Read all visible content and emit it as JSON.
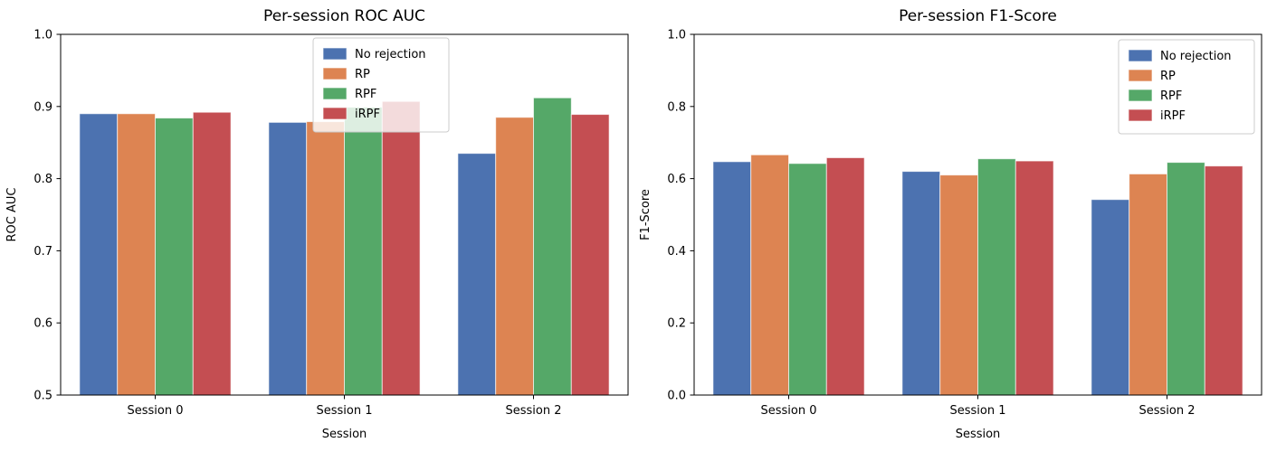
{
  "figure": {
    "background": "#ffffff",
    "palette": {
      "blue": "#4C72B0",
      "orange": "#DD8452",
      "green": "#55A868",
      "red": "#C44E52"
    }
  },
  "chart_data": [
    {
      "type": "bar",
      "title": "Per-session ROC AUC",
      "xlabel": "Session",
      "ylabel": "ROC AUC",
      "categories": [
        "Session 0",
        "Session 1",
        "Session 2"
      ],
      "series": [
        {
          "name": "No rejection",
          "color": "#4C72B0",
          "values": [
            0.89,
            0.878,
            0.835
          ]
        },
        {
          "name": "RP",
          "color": "#DD8452",
          "values": [
            0.89,
            0.879,
            0.885
          ]
        },
        {
          "name": "RPF",
          "color": "#55A868",
          "values": [
            0.884,
            0.899,
            0.912
          ]
        },
        {
          "name": "iRPF",
          "color": "#C44E52",
          "values": [
            0.892,
            0.907,
            0.889
          ]
        }
      ],
      "ylim": [
        0.5,
        1.0
      ],
      "yticks": [
        0.5,
        0.6,
        0.7,
        0.8,
        0.9,
        1.0
      ],
      "grid": false,
      "legend": {
        "position": "upper-center",
        "entries": [
          "No rejection",
          "RP",
          "RPF",
          "iRPF"
        ]
      }
    },
    {
      "type": "bar",
      "title": "Per-session F1-Score",
      "xlabel": "Session",
      "ylabel": "F1-Score",
      "categories": [
        "Session 0",
        "Session 1",
        "Session 2"
      ],
      "series": [
        {
          "name": "No rejection",
          "color": "#4C72B0",
          "values": [
            0.647,
            0.62,
            0.542
          ]
        },
        {
          "name": "RP",
          "color": "#DD8452",
          "values": [
            0.666,
            0.61,
            0.613
          ]
        },
        {
          "name": "RPF",
          "color": "#55A868",
          "values": [
            0.642,
            0.655,
            0.645
          ]
        },
        {
          "name": "iRPF",
          "color": "#C44E52",
          "values": [
            0.658,
            0.649,
            0.635
          ]
        }
      ],
      "ylim": [
        0.0,
        1.0
      ],
      "yticks": [
        0.0,
        0.2,
        0.4,
        0.6,
        0.8,
        1.0
      ],
      "grid": false,
      "legend": {
        "position": "upper-right",
        "entries": [
          "No rejection",
          "RP",
          "RPF",
          "iRPF"
        ]
      }
    }
  ]
}
